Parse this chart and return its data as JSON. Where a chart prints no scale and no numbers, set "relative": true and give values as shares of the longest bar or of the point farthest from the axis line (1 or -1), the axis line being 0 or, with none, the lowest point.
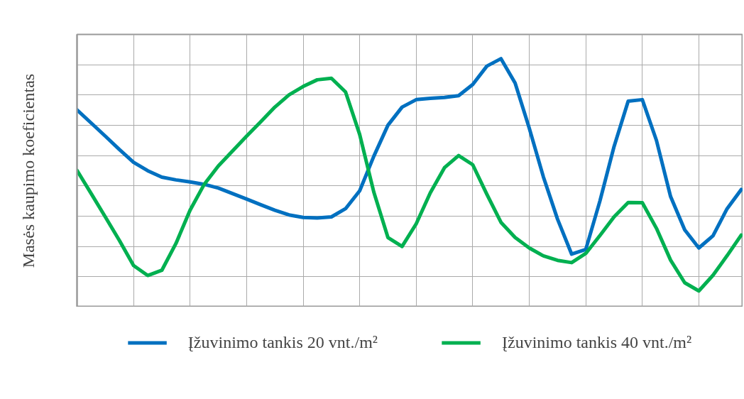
{
  "chart_data": {
    "type": "line",
    "relative": true,
    "ylabel": "Masės kaupimo koeficientas",
    "categories": [
      null,
      null,
      null,
      null,
      null,
      null,
      null,
      null,
      null,
      null,
      null,
      null,
      null,
      null,
      null,
      null,
      null,
      null,
      null,
      null,
      null,
      null,
      null,
      null,
      null,
      null,
      null,
      null,
      null,
      null,
      null,
      null,
      null,
      null,
      null,
      null,
      null,
      null,
      null,
      null,
      null,
      null,
      null,
      null,
      null,
      null,
      null,
      null
    ],
    "grid": true,
    "legend": "bottom",
    "line_style": "solid",
    "series": [
      {
        "name": "Įžuvinimo tankis 20 vnt./m²",
        "color": "#0070c0",
        "values": [
          0.794,
          0.741,
          0.688,
          0.634,
          0.583,
          0.549,
          0.523,
          0.512,
          0.504,
          0.494,
          0.479,
          0.457,
          0.435,
          0.412,
          0.39,
          0.371,
          0.361,
          0.359,
          0.363,
          0.396,
          0.468,
          0.607,
          0.732,
          0.805,
          0.835,
          0.84,
          0.844,
          0.851,
          0.896,
          0.97,
          1,
          0.902,
          0.72,
          0.524,
          0.354,
          0.213,
          0.232,
          0.427,
          0.646,
          0.829,
          0.835,
          0.671,
          0.445,
          0.311,
          0.238,
          0.287,
          0.396,
          0.473
        ]
      },
      {
        "name": "Įžuvinimo tankis 40 vnt./m²",
        "color": "#00b050",
        "values": [
          0.55,
          0.457,
          0.363,
          0.268,
          0.167,
          0.127,
          0.148,
          0.256,
          0.39,
          0.494,
          0.568,
          0.628,
          0.688,
          0.746,
          0.805,
          0.854,
          0.888,
          0.915,
          0.921,
          0.866,
          0.695,
          0.463,
          0.28,
          0.244,
          0.335,
          0.46,
          0.561,
          0.61,
          0.573,
          0.454,
          0.341,
          0.28,
          0.238,
          0.206,
          0.188,
          0.179,
          0.216,
          0.288,
          0.363,
          0.421,
          0.42,
          0.317,
          0.189,
          0.098,
          0.065,
          0.128,
          0.207,
          0.29
        ]
      }
    ]
  }
}
